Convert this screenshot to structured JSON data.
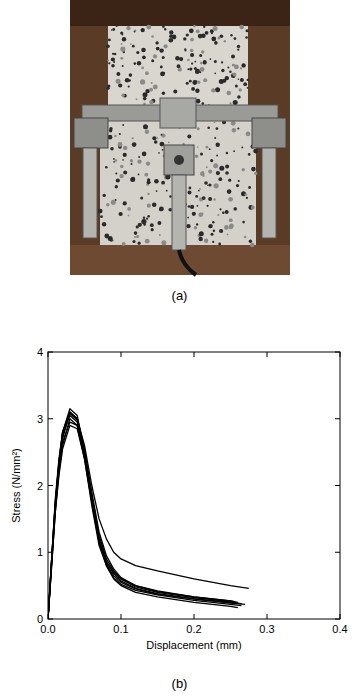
{
  "captions": [
    "(a)",
    "(b)"
  ],
  "chart_data": {
    "type": "line",
    "x_label": "Displacement (mm)",
    "y_label": "Stress (N/mm²)",
    "color": "#000000",
    "xlim": [
      0,
      0.4
    ],
    "xticks": [
      {
        "value": 0,
        "label": "0.0"
      },
      {
        "value": 0.1,
        "label": "0.1"
      },
      {
        "value": 0.2,
        "label": "0.2"
      },
      {
        "value": 0.3,
        "label": "0.3"
      },
      {
        "value": 0.4,
        "label": "0.4"
      }
    ],
    "ylim": [
      0,
      4
    ],
    "yticks": [
      0,
      1,
      2,
      3,
      4
    ],
    "series": [
      {
        "x": [
          0,
          0.005,
          0.01,
          0.015,
          0.02,
          0.03,
          0.04,
          0.05,
          0.06,
          0.07,
          0.08,
          0.09,
          0.1,
          0.12,
          0.15,
          0.2,
          0.25,
          0.275
        ],
        "values": [
          0,
          0.9,
          1.7,
          2.3,
          2.7,
          3.1,
          3.0,
          2.6,
          2.0,
          1.5,
          1.2,
          1.0,
          0.9,
          0.8,
          0.72,
          0.6,
          0.5,
          0.46
        ]
      },
      {
        "x": [
          0,
          0.005,
          0.01,
          0.015,
          0.02,
          0.03,
          0.04,
          0.05,
          0.06,
          0.07,
          0.08,
          0.09,
          0.1,
          0.12,
          0.15,
          0.2,
          0.25,
          0.26
        ],
        "values": [
          0,
          0.9,
          1.8,
          2.4,
          2.8,
          3.15,
          3.05,
          2.5,
          1.8,
          1.2,
          0.85,
          0.7,
          0.6,
          0.5,
          0.42,
          0.33,
          0.27,
          0.25
        ]
      },
      {
        "x": [
          0,
          0.005,
          0.01,
          0.015,
          0.02,
          0.03,
          0.04,
          0.05,
          0.06,
          0.07,
          0.08,
          0.09,
          0.1,
          0.12,
          0.15,
          0.2,
          0.25,
          0.265
        ],
        "values": [
          0,
          0.8,
          1.6,
          2.2,
          2.6,
          3.0,
          2.9,
          2.4,
          1.7,
          1.1,
          0.8,
          0.62,
          0.52,
          0.43,
          0.36,
          0.28,
          0.22,
          0.2
        ]
      },
      {
        "x": [
          0,
          0.005,
          0.01,
          0.015,
          0.02,
          0.03,
          0.04,
          0.05,
          0.06,
          0.07,
          0.08,
          0.09,
          0.1,
          0.12,
          0.15,
          0.2,
          0.25,
          0.27
        ],
        "values": [
          0,
          0.85,
          1.7,
          2.3,
          2.75,
          3.05,
          2.95,
          2.45,
          1.75,
          1.15,
          0.82,
          0.65,
          0.55,
          0.45,
          0.37,
          0.3,
          0.24,
          0.22
        ]
      },
      {
        "x": [
          0,
          0.005,
          0.01,
          0.015,
          0.02,
          0.03,
          0.04,
          0.05,
          0.06,
          0.07,
          0.08,
          0.09,
          0.1,
          0.12,
          0.15,
          0.2,
          0.25,
          0.258
        ],
        "values": [
          0,
          0.9,
          1.75,
          2.35,
          2.8,
          3.1,
          3.0,
          2.55,
          1.85,
          1.25,
          0.9,
          0.72,
          0.6,
          0.48,
          0.4,
          0.32,
          0.26,
          0.24
        ]
      },
      {
        "x": [
          0,
          0.005,
          0.01,
          0.015,
          0.02,
          0.03,
          0.04,
          0.05,
          0.06,
          0.07,
          0.08,
          0.09,
          0.1,
          0.12,
          0.15,
          0.2,
          0.25,
          0.26
        ],
        "values": [
          0,
          0.8,
          1.6,
          2.15,
          2.55,
          2.9,
          2.85,
          2.4,
          1.75,
          1.15,
          0.8,
          0.6,
          0.5,
          0.4,
          0.33,
          0.25,
          0.19,
          0.17
        ]
      },
      {
        "x": [
          0,
          0.005,
          0.01,
          0.015,
          0.02,
          0.03,
          0.04,
          0.05,
          0.06,
          0.07,
          0.08,
          0.09,
          0.1,
          0.12,
          0.15,
          0.2,
          0.25,
          0.255
        ],
        "values": [
          0,
          0.85,
          1.65,
          2.25,
          2.65,
          2.95,
          2.9,
          2.5,
          1.9,
          1.3,
          0.95,
          0.75,
          0.62,
          0.5,
          0.41,
          0.33,
          0.27,
          0.26
        ]
      },
      {
        "x": [
          0,
          0.005,
          0.01,
          0.015,
          0.02,
          0.03,
          0.04,
          0.05,
          0.06,
          0.07,
          0.08,
          0.09,
          0.1,
          0.12,
          0.15,
          0.2,
          0.25,
          0.265
        ],
        "values": [
          0,
          0.9,
          1.75,
          2.35,
          2.8,
          3.08,
          2.98,
          2.45,
          1.78,
          1.2,
          0.86,
          0.68,
          0.57,
          0.46,
          0.38,
          0.3,
          0.25,
          0.23
        ]
      }
    ]
  }
}
